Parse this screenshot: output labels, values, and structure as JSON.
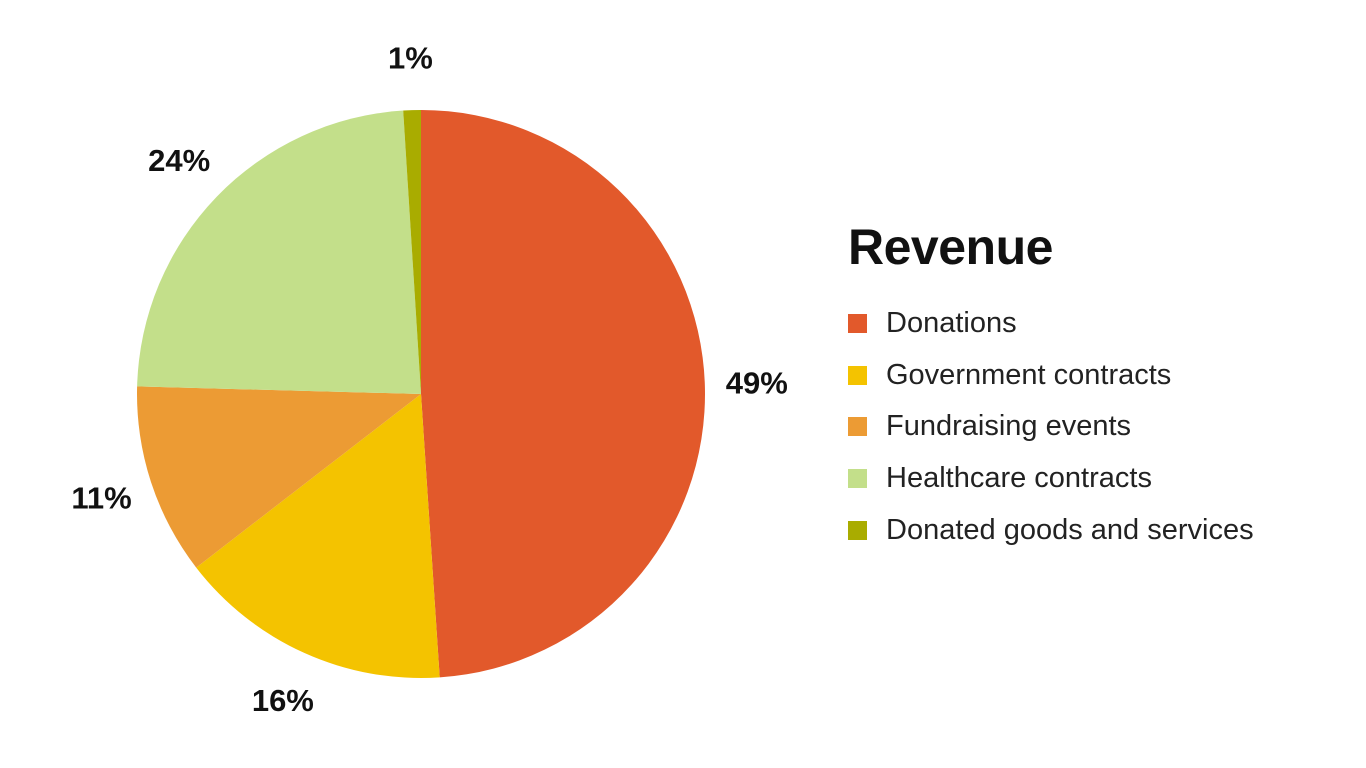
{
  "chart_data": {
    "type": "pie",
    "title": "Revenue",
    "slices": [
      {
        "label": "Donations",
        "value": 49,
        "display": "49%",
        "color": "#e2592b"
      },
      {
        "label": "Government contracts",
        "value": 15.6,
        "display": "16%",
        "color": "#f4c300"
      },
      {
        "label": "Fundraising events",
        "value": 10.9,
        "display": "11%",
        "color": "#ec9b34"
      },
      {
        "label": "Healthcare contracts",
        "value": 23.6,
        "display": "24%",
        "color": "#c3df8a"
      },
      {
        "label": "Donated goods and services",
        "value": 1,
        "display": "1%",
        "color": "#a9ac00"
      }
    ],
    "start_angle_deg": 0,
    "direction": "clockwise"
  }
}
